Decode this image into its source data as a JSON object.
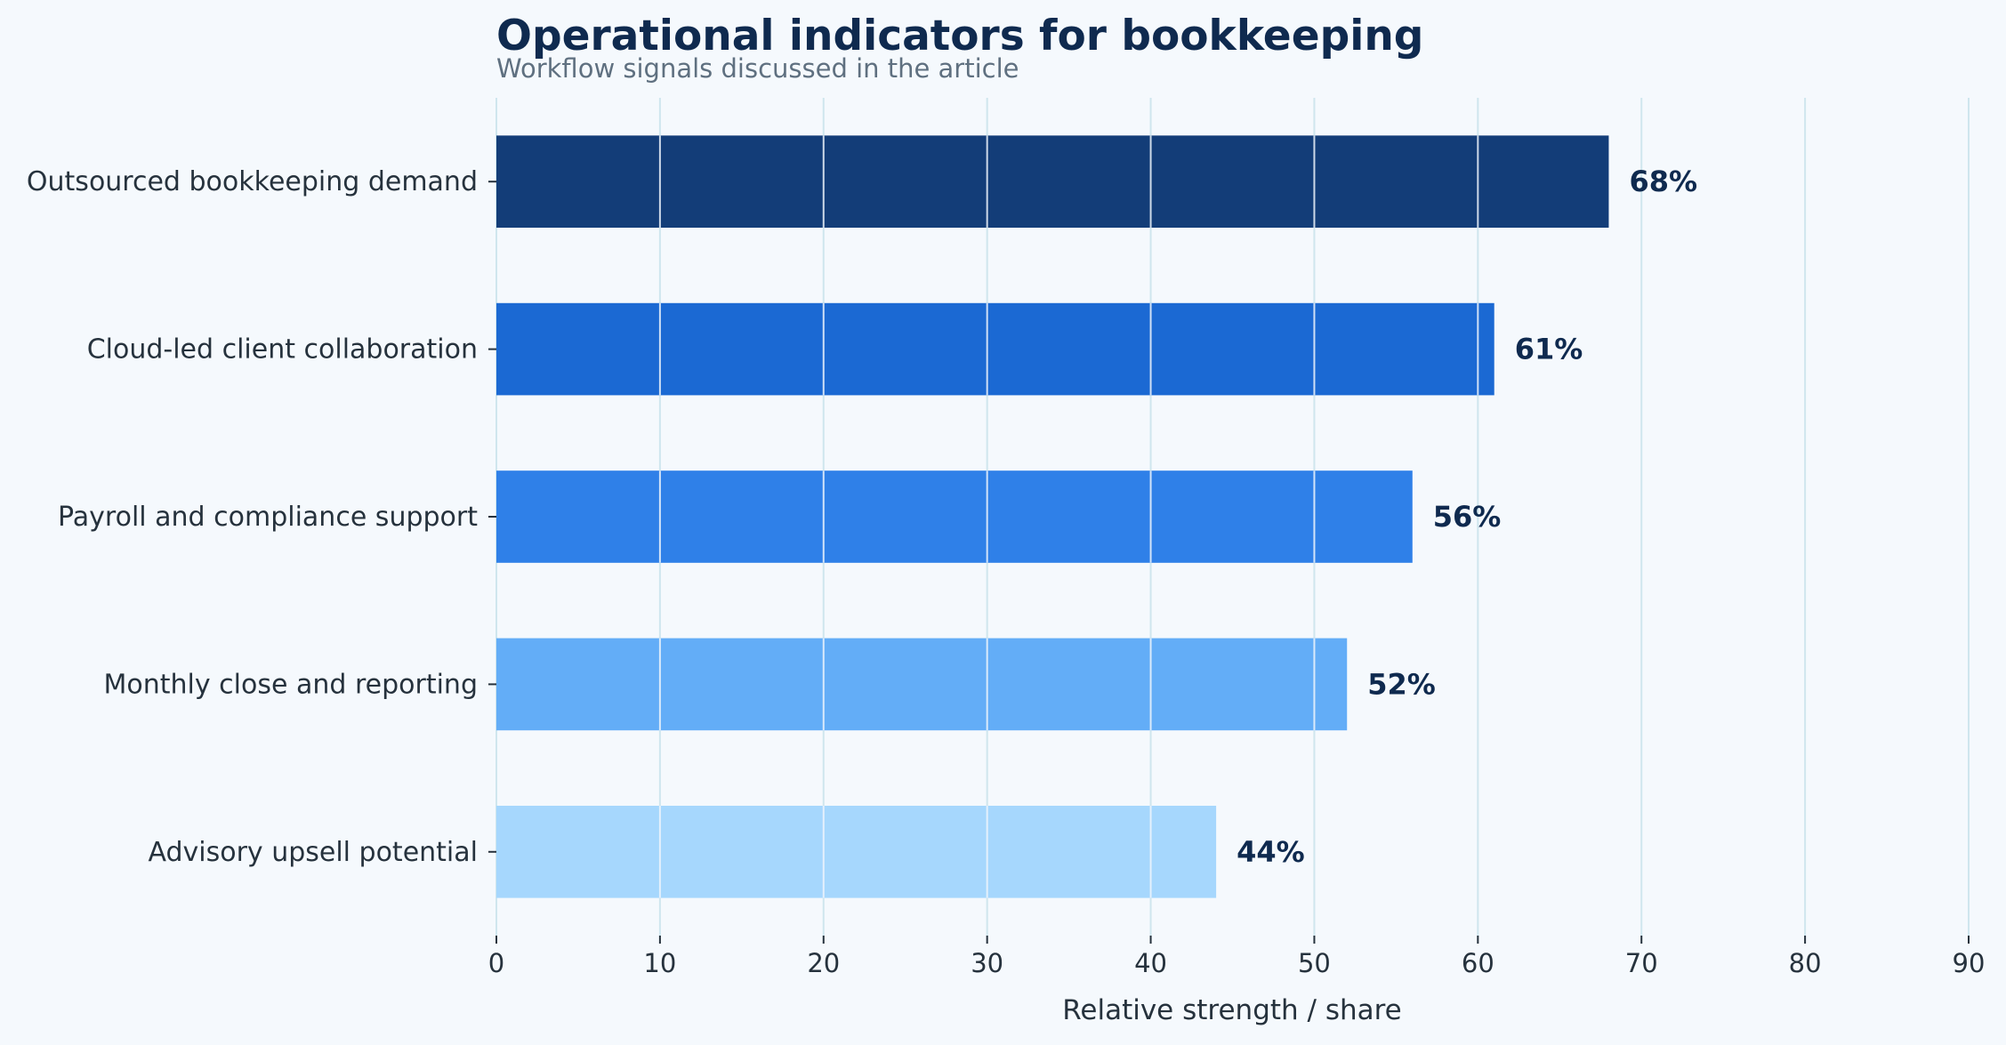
{
  "chart_data": {
    "type": "bar",
    "orientation": "horizontal",
    "title": "Operational indicators for bookkeeping",
    "subtitle": "Workflow signals discussed in the article",
    "xlabel": "Relative strength / share",
    "ylabel": "",
    "categories": [
      "Outsourced bookkeeping demand",
      "Cloud-led client collaboration",
      "Payroll and compliance support",
      "Monthly close and reporting",
      "Advisory upsell potential"
    ],
    "values": [
      68,
      61,
      56,
      52,
      44
    ],
    "value_labels": [
      "68%",
      "61%",
      "56%",
      "52%",
      "44%"
    ],
    "bar_colors": [
      "#133d78",
      "#1b69d3",
      "#2f80e8",
      "#63adf7",
      "#a6d7fd"
    ],
    "xlim": [
      0,
      90
    ],
    "xticks": [
      0,
      10,
      20,
      30,
      40,
      50,
      60,
      70,
      80,
      90
    ],
    "grid": "vertical",
    "legend": "none"
  },
  "colors": {
    "background": "#f5f9fd",
    "grid": "#cfe6ee",
    "title": "#0f2a4f",
    "subtitle": "#5f7080",
    "text": "#26323d"
  }
}
